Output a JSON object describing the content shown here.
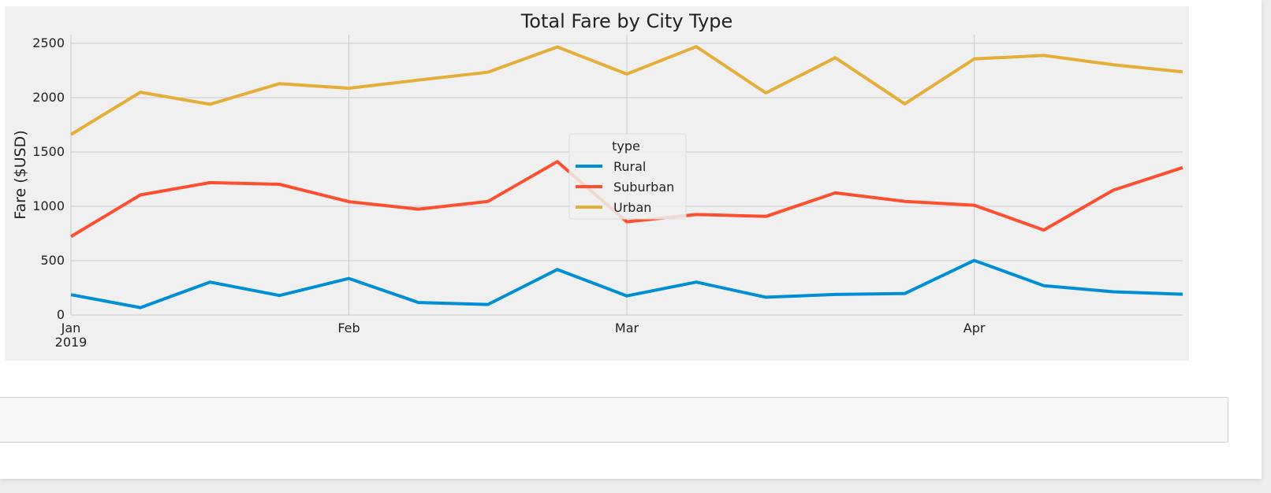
{
  "chart_data": {
    "type": "line",
    "title": "Total Fare by City Type",
    "xlabel": "",
    "ylabel": "Fare ($USD)",
    "x": [
      "2019-01-06",
      "2019-01-13",
      "2019-01-20",
      "2019-01-27",
      "2019-02-03",
      "2019-02-10",
      "2019-02-17",
      "2019-02-24",
      "2019-03-03",
      "2019-03-10",
      "2019-03-17",
      "2019-03-24",
      "2019-03-31",
      "2019-04-07",
      "2019-04-14",
      "2019-04-21",
      "2019-04-28"
    ],
    "xlim": [
      "2019-01-06",
      "2019-04-28"
    ],
    "x_ticks": [
      {
        "date": "2019-01-06",
        "label": "Jan",
        "sublabel": "2019"
      },
      {
        "date": "2019-02-03",
        "label": "Feb",
        "sublabel": ""
      },
      {
        "date": "2019-03-03",
        "label": "Mar",
        "sublabel": ""
      },
      {
        "date": "2019-04-07",
        "label": "Apr",
        "sublabel": ""
      }
    ],
    "ylim": [
      0,
      2580
    ],
    "y_ticks": [
      0,
      500,
      1000,
      1500,
      2000,
      2500
    ],
    "grid": true,
    "legend": {
      "title": "type",
      "placement": "center"
    },
    "series": [
      {
        "name": "Rural",
        "color": "#008fd5",
        "values": [
          187,
          68,
          303,
          180,
          336,
          115,
          97,
          419,
          176,
          303,
          164,
          189,
          198,
          502,
          270,
          214,
          191
        ]
      },
      {
        "name": "Suburban",
        "color": "#fc4f30",
        "values": [
          722,
          1105,
          1218,
          1203,
          1043,
          974,
          1045,
          1412,
          858,
          925,
          907,
          1124,
          1046,
          1010,
          782,
          1149,
          1357
        ]
      },
      {
        "name": "Urban",
        "color": "#e5ae38",
        "values": [
          1661,
          2050,
          1939,
          2129,
          2087,
          2162,
          2234,
          2467,
          2218,
          2470,
          2044,
          2368,
          1943,
          2357,
          2389,
          2303,
          2238
        ]
      }
    ]
  },
  "colors": {
    "plot_background": "#f0f0f0",
    "grid": "#cbcbcb",
    "page_background": "#ffffff"
  }
}
